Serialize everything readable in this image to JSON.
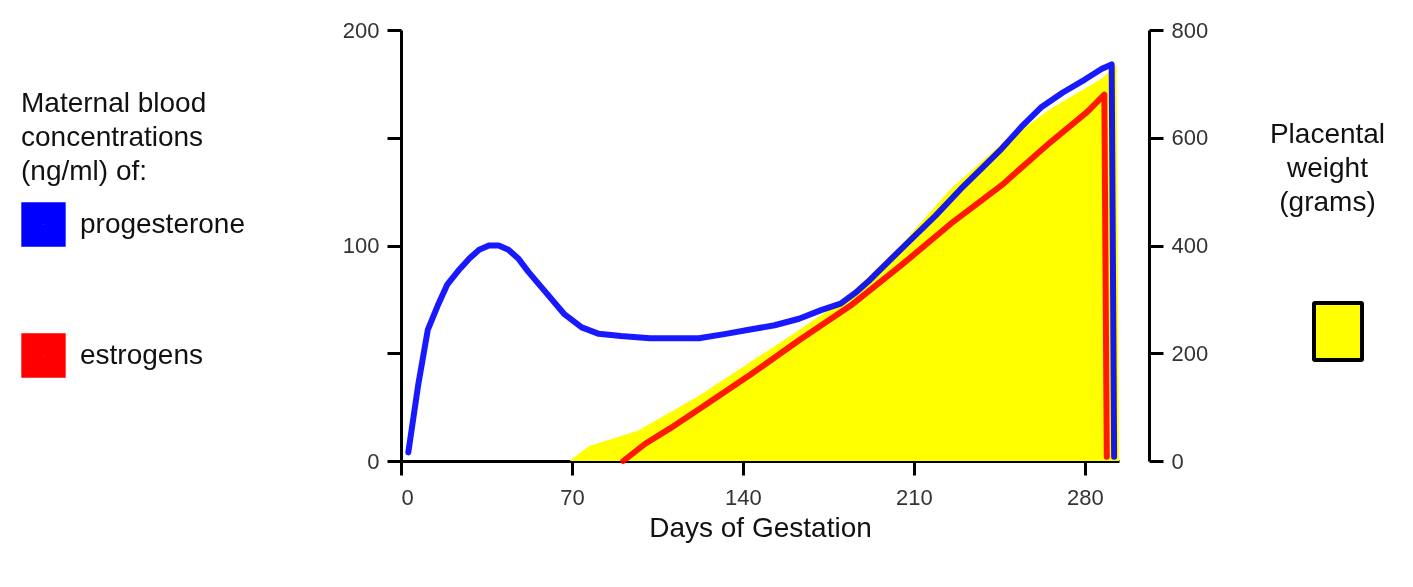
{
  "chart_data": {
    "type": "line",
    "xlabel": "Days of Gestation",
    "legend_title": "Maternal blood concentrations (ng/ml) of:",
    "y2label": "Placental weight (grams)",
    "xlim": [
      0,
      294
    ],
    "xticks": [
      0,
      70,
      140,
      210,
      280
    ],
    "ylim": [
      0,
      200
    ],
    "yticks": [
      0,
      {
        "value": 50,
        "label": null
      },
      100,
      {
        "value": 150,
        "label": null
      },
      200
    ],
    "y2lim": [
      0,
      800
    ],
    "y2ticks": [
      0,
      200,
      400,
      600,
      800
    ],
    "grid": false,
    "legend": "left",
    "series": [
      {
        "type": "area",
        "axis": "y2",
        "color": "#ffff00",
        "x": [
          69,
          77,
          97,
          122,
          163,
          184,
          205,
          225,
          246,
          266,
          287,
          293,
          294
        ],
        "values": [
          0,
          28,
          56,
          121,
          243,
          308,
          402,
          505,
          589,
          654,
          710,
          736,
          0
        ]
      },
      {
        "name": "progesterone",
        "color": "#0000ff",
        "x": [
          3,
          7,
          11,
          15,
          19,
          24,
          28,
          32,
          36,
          40,
          44,
          48,
          52,
          58,
          67,
          74,
          81,
          90,
          102,
          112,
          122,
          133,
          143,
          153,
          163,
          172,
          180,
          186,
          192,
          200,
          209,
          219,
          229,
          238,
          246,
          254,
          262,
          271,
          280,
          287,
          291,
          292
        ],
        "values": [
          4,
          35,
          61,
          72,
          82,
          89,
          94,
          98,
          100,
          100,
          98,
          94,
          88,
          80,
          68,
          62,
          59,
          58,
          57,
          57,
          57,
          59,
          61,
          63,
          66,
          70,
          73,
          78,
          84,
          93,
          103,
          114,
          126,
          136,
          145,
          155,
          164,
          171,
          177,
          182,
          184,
          2
        ]
      },
      {
        "name": "estrogens",
        "color": "#ff0000",
        "x": [
          91,
          100,
          110,
          122,
          143,
          163,
          184,
          205,
          225,
          246,
          266,
          281,
          288,
          289
        ],
        "values": [
          0,
          8,
          15,
          24,
          40,
          56,
          72,
          91,
          110,
          128,
          148,
          162,
          170,
          2
        ]
      }
    ]
  }
}
